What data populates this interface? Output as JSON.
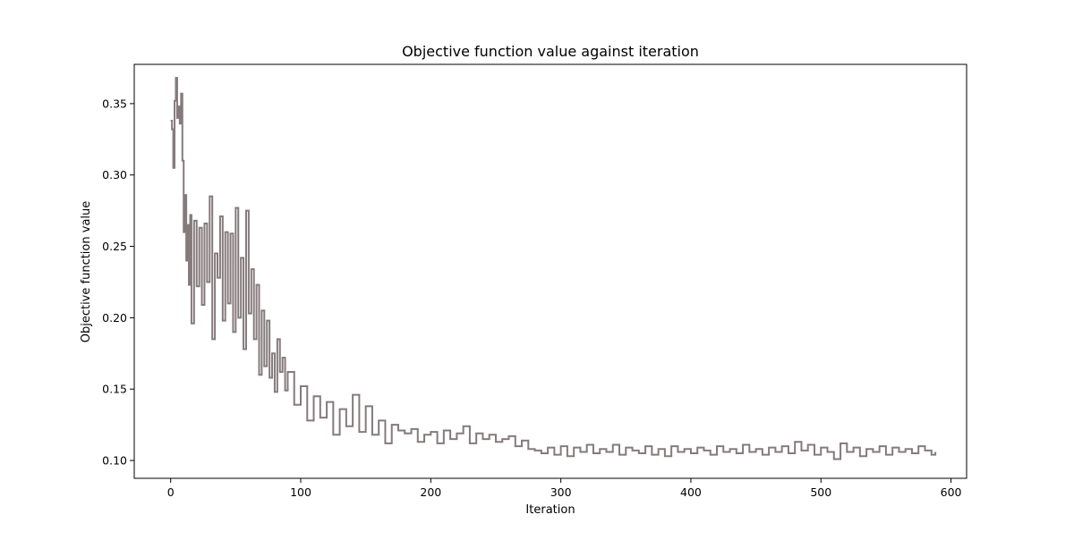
{
  "chart_data": {
    "type": "line",
    "title": "Objective function value against iteration",
    "xlabel": "Iteration",
    "ylabel": "Objective function value",
    "xlim": [
      -28,
      612
    ],
    "ylim": [
      0.0875,
      0.3775
    ],
    "xticks": [
      0,
      100,
      200,
      300,
      400,
      500,
      600
    ],
    "xtick_labels": [
      "0",
      "100",
      "200",
      "300",
      "400",
      "500",
      "600"
    ],
    "yticks": [
      0.1,
      0.15,
      0.2,
      0.25,
      0.3,
      0.35
    ],
    "ytick_labels": [
      "0.10",
      "0.15",
      "0.20",
      "0.25",
      "0.30",
      "0.35"
    ],
    "grid": false,
    "series": [
      {
        "color": "#857a7c",
        "x": [
          0,
          1,
          2,
          3,
          4,
          5,
          6,
          7,
          8,
          9,
          10,
          11,
          12,
          13,
          14,
          15,
          16,
          18,
          20,
          22,
          24,
          26,
          28,
          30,
          32,
          34,
          36,
          38,
          40,
          42,
          44,
          46,
          48,
          50,
          52,
          54,
          56,
          58,
          60,
          62,
          64,
          66,
          68,
          70,
          72,
          74,
          76,
          78,
          80,
          82,
          84,
          86,
          88,
          90,
          95,
          100,
          105,
          110,
          115,
          120,
          125,
          130,
          135,
          140,
          145,
          150,
          155,
          160,
          165,
          170,
          175,
          180,
          185,
          190,
          195,
          200,
          205,
          210,
          215,
          220,
          225,
          230,
          235,
          240,
          245,
          250,
          255,
          260,
          265,
          270,
          275,
          280,
          285,
          290,
          295,
          300,
          305,
          310,
          315,
          320,
          325,
          330,
          335,
          340,
          345,
          350,
          355,
          360,
          365,
          370,
          375,
          380,
          385,
          390,
          395,
          400,
          405,
          410,
          415,
          420,
          425,
          430,
          435,
          440,
          445,
          450,
          455,
          460,
          465,
          470,
          475,
          480,
          485,
          490,
          495,
          500,
          505,
          510,
          515,
          520,
          525,
          530,
          535,
          540,
          545,
          550,
          555,
          560,
          565,
          570,
          575,
          580,
          585,
          588
        ],
        "values": [
          0.338,
          0.332,
          0.305,
          0.352,
          0.368,
          0.34,
          0.348,
          0.336,
          0.357,
          0.31,
          0.26,
          0.286,
          0.24,
          0.265,
          0.223,
          0.272,
          0.196,
          0.268,
          0.222,
          0.263,
          0.209,
          0.266,
          0.225,
          0.285,
          0.185,
          0.245,
          0.228,
          0.271,
          0.198,
          0.26,
          0.21,
          0.259,
          0.19,
          0.277,
          0.2,
          0.242,
          0.178,
          0.275,
          0.203,
          0.234,
          0.185,
          0.223,
          0.16,
          0.205,
          0.166,
          0.198,
          0.158,
          0.175,
          0.148,
          0.185,
          0.162,
          0.172,
          0.149,
          0.162,
          0.139,
          0.152,
          0.128,
          0.145,
          0.13,
          0.141,
          0.118,
          0.136,
          0.124,
          0.146,
          0.12,
          0.138,
          0.118,
          0.128,
          0.112,
          0.125,
          0.121,
          0.119,
          0.122,
          0.113,
          0.118,
          0.12,
          0.112,
          0.121,
          0.115,
          0.119,
          0.124,
          0.112,
          0.119,
          0.115,
          0.118,
          0.113,
          0.115,
          0.117,
          0.11,
          0.114,
          0.108,
          0.107,
          0.105,
          0.109,
          0.104,
          0.11,
          0.103,
          0.109,
          0.106,
          0.111,
          0.105,
          0.108,
          0.106,
          0.111,
          0.104,
          0.109,
          0.107,
          0.105,
          0.11,
          0.104,
          0.108,
          0.103,
          0.11,
          0.106,
          0.108,
          0.105,
          0.109,
          0.107,
          0.104,
          0.11,
          0.106,
          0.108,
          0.105,
          0.111,
          0.106,
          0.108,
          0.104,
          0.109,
          0.106,
          0.11,
          0.105,
          0.113,
          0.107,
          0.111,
          0.104,
          0.109,
          0.106,
          0.101,
          0.112,
          0.106,
          0.109,
          0.103,
          0.108,
          0.106,
          0.11,
          0.104,
          0.109,
          0.106,
          0.108,
          0.105,
          0.11,
          0.107,
          0.104,
          0.106
        ]
      }
    ]
  }
}
